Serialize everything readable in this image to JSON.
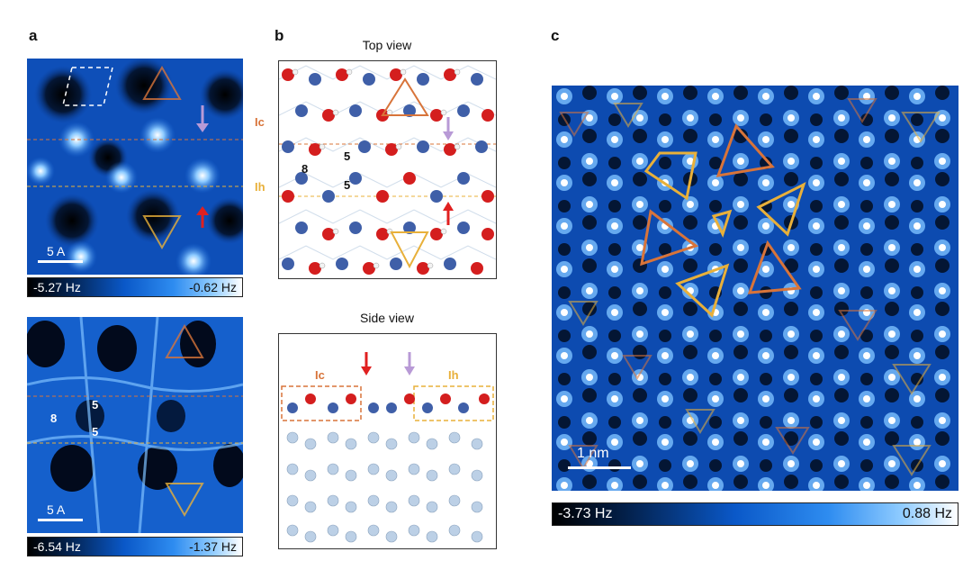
{
  "panels": {
    "a": {
      "label": "a",
      "top_image": {
        "scale_label": "5 A",
        "cbar_min": "-5.27 Hz",
        "cbar_max": "-0.62 Hz"
      },
      "bottom_image": {
        "scale_label": "5 A",
        "ring_labels": [
          "8",
          "5",
          "5"
        ],
        "cbar_min": "-6.54 Hz",
        "cbar_max": "-1.37 Hz"
      }
    },
    "b": {
      "label": "b",
      "top_view": {
        "title": "Top view",
        "layer_ic": "Ic",
        "layer_ih": "Ih",
        "ring_labels": [
          "8",
          "5",
          "5"
        ]
      },
      "side_view": {
        "title": "Side view",
        "layer_ic": "Ic",
        "layer_ih": "Ih"
      }
    },
    "c": {
      "label": "c",
      "scale_label": "1 nm",
      "cbar_min": "-3.73 Hz",
      "cbar_max": "0.88 Hz"
    }
  },
  "colors": {
    "ic_orange": "#d8743a",
    "ih_yellow": "#e8b03a",
    "arrow_red": "#e02020",
    "arrow_purple": "#b89ad6",
    "oxygen_red": "#d41e1e",
    "oxygen_blue": "#3f5fa8",
    "hydrogen": "#f2f2f2",
    "substrate": "#bcd0e6"
  }
}
